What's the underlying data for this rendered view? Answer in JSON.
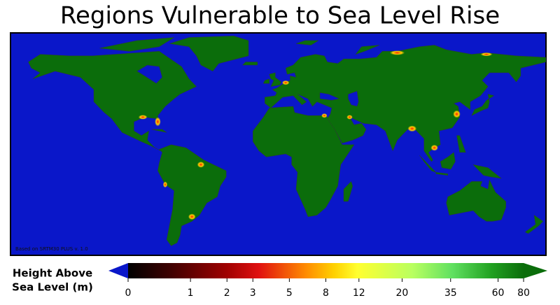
{
  "title": "Regions Vulnerable to Sea Level Rise",
  "map": {
    "note": "Based on SRTM30 PLUS v. 1.0"
  },
  "colorbar": {
    "label": [
      "Height Above",
      "Sea Level (m)"
    ],
    "lim": [
      0,
      80
    ],
    "ticks": [
      0,
      1,
      2,
      3,
      5,
      8,
      12,
      20,
      35,
      60,
      80
    ]
  }
}
